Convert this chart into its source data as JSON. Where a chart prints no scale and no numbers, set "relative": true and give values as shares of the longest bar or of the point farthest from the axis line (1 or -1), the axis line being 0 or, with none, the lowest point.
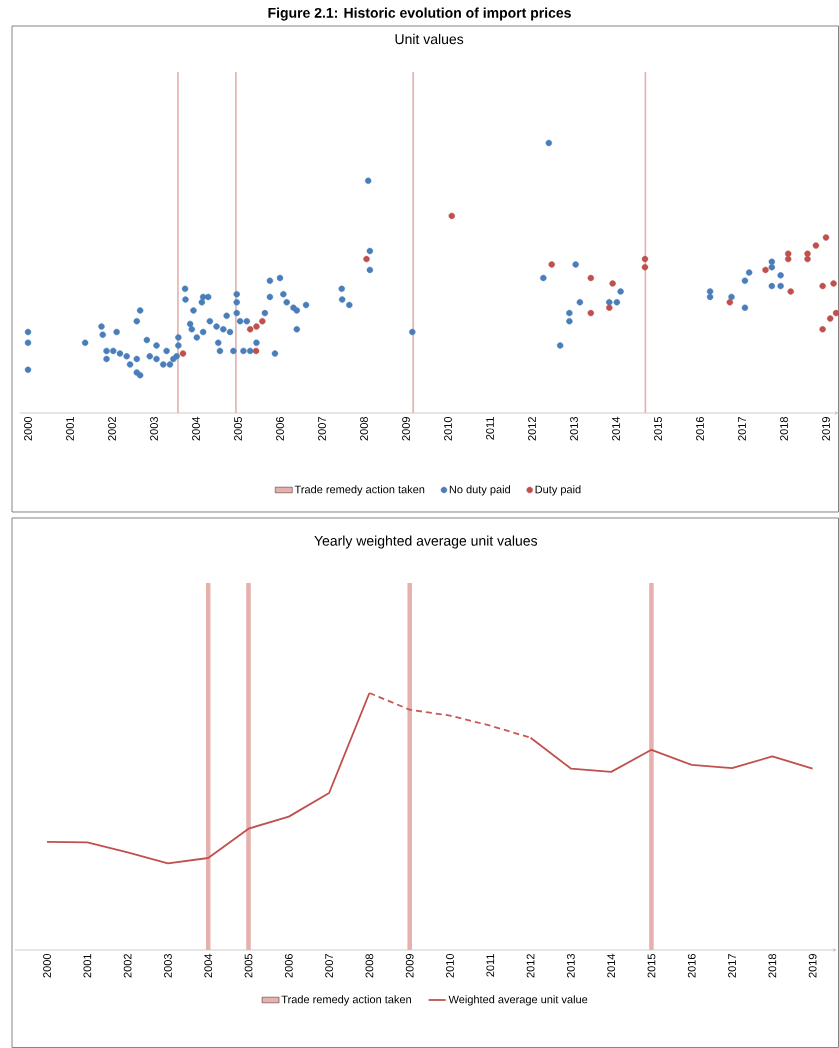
{
  "chart_data": [
    {
      "type": "scatter",
      "title": "Unit values",
      "annotations": [
        "Figure 2.1: Historic evolution of import prices"
      ],
      "relative": true,
      "xlim": [
        1999.8,
        2019.3
      ],
      "xticks": [
        2000,
        2001,
        2002,
        2003,
        2004,
        2005,
        2006,
        2007,
        2008,
        2009,
        2010,
        2011,
        2012,
        2013,
        2014,
        2015,
        2016,
        2017,
        2018,
        2019
      ],
      "legend": "bottom",
      "marker": "circle",
      "ref_lines": [
        {
          "axis": "x",
          "value": 2003.57,
          "label": "Trade remedy action taken",
          "color": "#e6b0ac"
        },
        {
          "axis": "x",
          "value": 2004.95,
          "color": "#e6b0ac"
        },
        {
          "axis": "x",
          "value": 2009.17,
          "color": "#e6b0ac"
        },
        {
          "axis": "x",
          "value": 2014.7,
          "color": "#e6b0ac"
        }
      ],
      "series": [
        {
          "name": "No duty paid",
          "color": "#4a7ebb",
          "x": [
            2000.0,
            2000.0,
            2000.0,
            2001.36,
            2001.75,
            2001.78,
            2001.87,
            2001.87,
            2002.11,
            2002.03,
            2002.19,
            2002.35,
            2002.43,
            2002.59,
            2002.59,
            2002.67,
            2002.59,
            2002.67,
            2002.83,
            2002.9,
            2003.06,
            2003.06,
            2003.22,
            2003.3,
            2003.38,
            2003.46,
            2003.54,
            2003.58,
            2003.58,
            2003.74,
            2003.75,
            2003.86,
            2003.9,
            2003.94,
            2004.02,
            2004.14,
            2004.17,
            2004.29,
            2004.17,
            2004.33,
            2004.49,
            2004.53,
            2004.57,
            2004.65,
            2004.73,
            2004.81,
            2004.89,
            2004.97,
            2004.97,
            2004.97,
            2005.05,
            2005.13,
            2005.21,
            2005.29,
            2005.44,
            2005.64,
            2005.76,
            2005.76,
            2005.88,
            2006.0,
            2006.08,
            2006.16,
            2006.32,
            2006.4,
            2006.4,
            2006.62,
            2007.47,
            2007.48,
            2007.65,
            2008.1,
            2008.14,
            2008.14,
            2009.15,
            2012.27,
            2012.4,
            2012.67,
            2012.89,
            2012.89,
            2013.04,
            2013.14,
            2013.84,
            2014.02,
            2014.11,
            2016.24,
            2016.24,
            2016.75,
            2017.07,
            2017.07,
            2017.17,
            2017.71,
            2017.71,
            2017.71,
            2017.92,
            2017.92
          ],
          "values": [
            0.3,
            0.26,
            0.16,
            0.26,
            0.32,
            0.29,
            0.23,
            0.2,
            0.3,
            0.23,
            0.22,
            0.21,
            0.18,
            0.2,
            0.15,
            0.14,
            0.34,
            0.38,
            0.27,
            0.21,
            0.25,
            0.2,
            0.18,
            0.23,
            0.18,
            0.2,
            0.21,
            0.28,
            0.25,
            0.46,
            0.42,
            0.33,
            0.31,
            0.38,
            0.28,
            0.41,
            0.43,
            0.43,
            0.3,
            0.34,
            0.32,
            0.26,
            0.23,
            0.31,
            0.36,
            0.3,
            0.23,
            0.44,
            0.41,
            0.37,
            0.34,
            0.23,
            0.34,
            0.23,
            0.26,
            0.37,
            0.43,
            0.49,
            0.22,
            0.5,
            0.44,
            0.41,
            0.39,
            0.38,
            0.31,
            0.4,
            0.46,
            0.42,
            0.4,
            0.86,
            0.6,
            0.53,
            0.3,
            0.5,
            1.0,
            0.25,
            0.37,
            0.34,
            0.55,
            0.41,
            0.41,
            0.41,
            0.45,
            0.45,
            0.43,
            0.43,
            0.39,
            0.49,
            0.52,
            0.56,
            0.54,
            0.47,
            0.51,
            0.47
          ]
        },
        {
          "name": "Duty paid",
          "color": "#c0504d",
          "x": [
            2003.69,
            2005.29,
            2005.44,
            2005.58,
            2005.43,
            2008.06,
            2010.09,
            2012.47,
            2013.4,
            2013.4,
            2013.92,
            2013.84,
            2014.69,
            2014.69,
            2016.71,
            2017.56,
            2018.1,
            2018.1,
            2018.16,
            2018.56,
            2018.56,
            2018.76,
            2019.0,
            2018.92,
            2019.18,
            2019.1,
            2019.24,
            2018.92
          ],
          "values": [
            0.22,
            0.31,
            0.32,
            0.34,
            0.23,
            0.57,
            0.73,
            0.55,
            0.5,
            0.37,
            0.48,
            0.39,
            0.57,
            0.54,
            0.41,
            0.53,
            0.59,
            0.57,
            0.45,
            0.59,
            0.57,
            0.62,
            0.65,
            0.47,
            0.48,
            0.35,
            0.37,
            0.31
          ]
        }
      ]
    },
    {
      "type": "line",
      "title": "Yearly weighted average unit values",
      "relative": true,
      "legend": "bottom",
      "marker": "none",
      "categories": [
        "2000",
        "2001",
        "2002",
        "2003",
        "2004",
        "2005",
        "2006",
        "2007",
        "2008",
        "2009",
        "2010",
        "2011",
        "2012",
        "2013",
        "2014",
        "2015",
        "2016",
        "2017",
        "2018",
        "2019"
      ],
      "ref_lines": [
        {
          "axis": "x",
          "value": "2004",
          "label": "Trade remedy action taken",
          "color": "#e6b0ac"
        },
        {
          "axis": "x",
          "value": "2005",
          "color": "#e6b0ac"
        },
        {
          "axis": "x",
          "value": "2009",
          "color": "#e6b0ac"
        },
        {
          "axis": "x",
          "value": "2015",
          "color": "#e6b0ac"
        }
      ],
      "series": [
        {
          "name": "Weighted average unit value",
          "color": "#c0504d",
          "line_style": "solid",
          "values": [
            0.421,
            0.419,
            0.38,
            0.337,
            0.358,
            0.472,
            0.519,
            0.611,
            1.0,
            null,
            null,
            null,
            0.826,
            0.706,
            0.693,
            0.779,
            0.72,
            0.708,
            0.753,
            0.706
          ]
        },
        {
          "color": "#c45a56",
          "line_style": "dashed",
          "values": [
            null,
            null,
            null,
            null,
            null,
            null,
            null,
            null,
            1.0,
            0.935,
            0.912,
            0.873,
            0.826,
            null,
            null,
            null,
            null,
            null,
            null,
            null
          ]
        }
      ]
    }
  ]
}
